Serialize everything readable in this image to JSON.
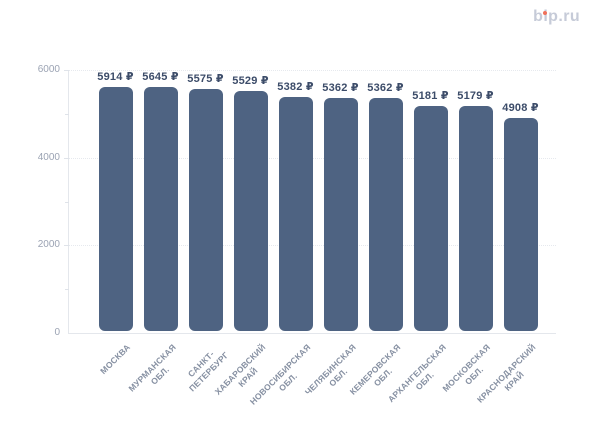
{
  "header": {
    "logo_text": "bip.ru",
    "logo_color": "#c6cbd8",
    "logo_dot_color": "#f0715b"
  },
  "chart_data": {
    "type": "bar",
    "title": "",
    "xlabel": "",
    "ylabel": "",
    "categories": [
      "МОСКВА",
      "МУРМАНСКАЯ ОБЛ.",
      "САНКТ-ПЕТЕРБУРГ",
      "ХАБАРОВСКИЙ КРАЙ",
      "НОВОСИБИРСКАЯ ОБЛ.",
      "ЧЕЛЯБИНСКАЯ ОБЛ.",
      "КЕМЕРОВСКАЯ ОБЛ.",
      "АРХАНГЕЛЬСКАЯ ОБЛ.",
      "МОСКОВСКАЯ ОБЛ.",
      "КРАСНОДАРСКИЙ КРАЙ"
    ],
    "category_lines": [
      [
        "МОСКВА"
      ],
      [
        "МУРМАНСКАЯ",
        "ОБЛ."
      ],
      [
        "САНКТ-",
        "ПЕТЕРБУРГ"
      ],
      [
        "ХАБАРОВСКИЙ",
        "КРАЙ"
      ],
      [
        "НОВОСИБИРСКАЯ",
        "ОБЛ."
      ],
      [
        "ЧЕЛЯБИНСКАЯ",
        "ОБЛ."
      ],
      [
        "КЕМЕРОВСКАЯ",
        "ОБЛ."
      ],
      [
        "АРХАНГЕЛЬСКАЯ",
        "ОБЛ."
      ],
      [
        "МОСКОВСКАЯ",
        "ОБЛ."
      ],
      [
        "КРАСНОДАРСКИЙ",
        "КРАЙ"
      ]
    ],
    "values": [
      5914,
      5645,
      5575,
      5529,
      5382,
      5362,
      5362,
      5181,
      5179,
      4908
    ],
    "value_suffix": " ₽",
    "value_labels": [
      "5914 ₽",
      "5645 ₽",
      "5575 ₽",
      "5529 ₽",
      "5382 ₽",
      "5362 ₽",
      "5362 ₽",
      "5181 ₽",
      "5179 ₽",
      "4908 ₽"
    ],
    "y_ticks": [
      0,
      2000,
      4000,
      6000
    ],
    "y_minor_ticks": [
      1000,
      3000,
      5000
    ],
    "ylim": [
      0,
      6000
    ],
    "grid": "dotted horizontal lines at 2000, 4000, 6000",
    "legend_position": "none",
    "bar_color": "#4e6382",
    "value_label_color": "#3c4c69",
    "tick_label_color": "#9ba3b3",
    "category_label_color": "#8690a2"
  }
}
